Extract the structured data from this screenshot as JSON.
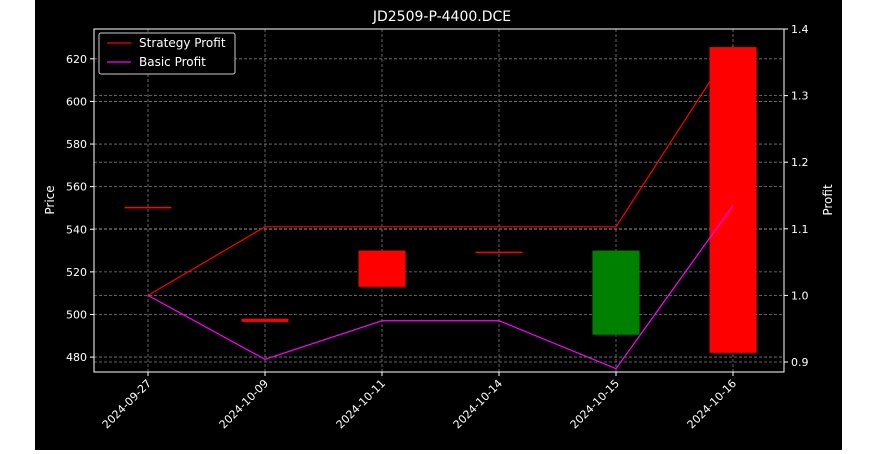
{
  "chart_data": {
    "type": "candlestick",
    "title": "JD2509-P-4400.DCE",
    "ylabel": "Price",
    "y2label": "Profit",
    "categories": [
      "2024-09-27",
      "2024-10-09",
      "2024-10-11",
      "2024-10-14",
      "2024-10-15",
      "2024-10-16"
    ],
    "ylim": [
      473,
      634
    ],
    "y2lim": [
      0.885,
      1.4
    ],
    "yticks": [
      480,
      500,
      520,
      540,
      560,
      580,
      600,
      620
    ],
    "y2ticks": [
      0.9,
      1.0,
      1.1,
      1.2,
      1.3,
      1.4
    ],
    "y2ticklabels": [
      "0.9",
      "1.0",
      "1.1",
      "1.2",
      "1.3",
      "1.4"
    ],
    "grid": true,
    "legend_position": "top-left",
    "candles": [
      {
        "date": "2024-09-27",
        "open": 550.5,
        "close": 550.5,
        "color": "#ff0000"
      },
      {
        "date": "2024-10-09",
        "open": 498.0,
        "close": 496.5,
        "color": "#ff0000"
      },
      {
        "date": "2024-10-11",
        "open": 530.0,
        "close": 513.0,
        "color": "#ff0000"
      },
      {
        "date": "2024-10-14",
        "open": 529.5,
        "close": 529.5,
        "color": "#ff0000"
      },
      {
        "date": "2024-10-15",
        "open": 490.5,
        "close": 530.0,
        "color": "#008000"
      },
      {
        "date": "2024-10-16",
        "open": 625.5,
        "close": 482.0,
        "color": "#ff0000"
      }
    ],
    "series": [
      {
        "name": "Strategy Profit",
        "color": "#ff0000",
        "axis": "right",
        "values": [
          1.0,
          1.103,
          1.103,
          1.103,
          1.103,
          1.375
        ]
      },
      {
        "name": "Basic Profit",
        "color": "#ff00ff",
        "axis": "right",
        "values": [
          1.0,
          0.904,
          0.962,
          0.962,
          0.89,
          1.135
        ]
      }
    ]
  }
}
